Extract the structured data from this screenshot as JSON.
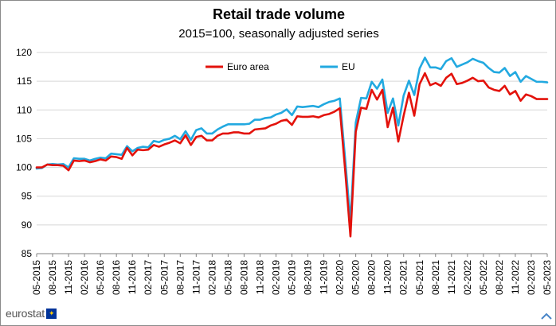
{
  "title": "Retail trade volume",
  "subtitle": "2015=100, seasonally adjusted series",
  "logo": {
    "text": "eurostat",
    "flag_icon": "eu-flag-icon"
  },
  "colors": {
    "euro_area": "#e3120b",
    "eu": "#22a9e0",
    "grid": "#d7d7d7",
    "axis": "#808080"
  },
  "chart_data": {
    "type": "line",
    "title": "Retail trade volume",
    "subtitle": "2015=100, seasonally adjusted series",
    "ylim": [
      85,
      120
    ],
    "yticks": [
      85,
      90,
      95,
      100,
      105,
      110,
      115,
      120
    ],
    "x_tick_labels": [
      "05-2015",
      "08-2015",
      "11-2015",
      "02-2016",
      "05-2016",
      "08-2016",
      "11-2016",
      "02-2017",
      "05-2017",
      "08-2017",
      "11-2017",
      "02-2018",
      "05-2018",
      "08-2018",
      "11-2018",
      "02-2019",
      "05-2019",
      "08-2019",
      "11-2019",
      "02-2020",
      "05-2020",
      "08-2020",
      "11-2020",
      "02-2021",
      "05-2021",
      "08-2021",
      "11-2021",
      "02-2022",
      "05-2022",
      "08-2022",
      "11-2022",
      "02-2023",
      "05-2023"
    ],
    "legend_position": "top-center",
    "grid": "horizontal",
    "x": [
      "05-2015",
      "06-2015",
      "07-2015",
      "08-2015",
      "09-2015",
      "10-2015",
      "11-2015",
      "12-2015",
      "01-2016",
      "02-2016",
      "03-2016",
      "04-2016",
      "05-2016",
      "06-2016",
      "07-2016",
      "08-2016",
      "09-2016",
      "10-2016",
      "11-2016",
      "12-2016",
      "01-2017",
      "02-2017",
      "03-2017",
      "04-2017",
      "05-2017",
      "06-2017",
      "07-2017",
      "08-2017",
      "09-2017",
      "10-2017",
      "11-2017",
      "12-2017",
      "01-2018",
      "02-2018",
      "03-2018",
      "04-2018",
      "05-2018",
      "06-2018",
      "07-2018",
      "08-2018",
      "09-2018",
      "10-2018",
      "11-2018",
      "12-2018",
      "01-2019",
      "02-2019",
      "03-2019",
      "04-2019",
      "05-2019",
      "06-2019",
      "07-2019",
      "08-2019",
      "09-2019",
      "10-2019",
      "11-2019",
      "12-2019",
      "01-2020",
      "02-2020",
      "03-2020",
      "04-2020",
      "05-2020",
      "06-2020",
      "07-2020",
      "08-2020",
      "09-2020",
      "10-2020",
      "11-2020",
      "12-2020",
      "01-2021",
      "02-2021",
      "03-2021",
      "04-2021",
      "05-2021",
      "06-2021",
      "07-2021",
      "08-2021",
      "09-2021",
      "10-2021",
      "11-2021",
      "12-2021",
      "01-2022",
      "02-2022",
      "03-2022",
      "04-2022",
      "05-2022",
      "06-2022",
      "07-2022",
      "08-2022",
      "09-2022",
      "10-2022",
      "11-2022",
      "12-2022",
      "01-2023",
      "02-2023",
      "03-2023",
      "04-2023",
      "05-2023"
    ],
    "series": [
      {
        "name": "Euro area",
        "color": "#e3120b",
        "values": [
          100.0,
          100.0,
          100.5,
          100.4,
          100.4,
          100.3,
          99.5,
          101.2,
          101.1,
          101.2,
          100.9,
          101.1,
          101.4,
          101.2,
          101.9,
          101.8,
          101.5,
          103.4,
          102.1,
          103.1,
          103.0,
          103.1,
          103.9,
          103.6,
          104.0,
          104.3,
          104.7,
          104.2,
          105.6,
          103.9,
          105.3,
          105.5,
          104.7,
          104.7,
          105.5,
          105.9,
          105.9,
          106.1,
          106.1,
          105.9,
          105.9,
          106.6,
          106.7,
          106.8,
          107.3,
          107.6,
          108.1,
          108.3,
          107.4,
          108.9,
          108.8,
          108.8,
          108.9,
          108.7,
          109.1,
          109.3,
          109.7,
          110.3,
          99.6,
          88.0,
          106.2,
          110.4,
          110.2,
          113.5,
          111.8,
          113.5,
          107.0,
          110.4,
          104.5,
          109.0,
          113.0,
          109.0,
          114.5,
          116.4,
          114.3,
          114.7,
          114.2,
          115.6,
          116.3,
          114.5,
          114.7,
          115.1,
          115.6,
          115.0,
          115.1,
          113.9,
          113.5,
          113.3,
          114.2,
          112.7,
          113.3,
          111.6,
          112.7,
          112.4,
          111.9,
          111.9,
          111.9
        ]
      },
      {
        "name": "EU",
        "color": "#22a9e0",
        "values": [
          99.8,
          99.9,
          100.5,
          100.6,
          100.5,
          100.6,
          100.0,
          101.6,
          101.5,
          101.5,
          101.2,
          101.5,
          101.7,
          101.6,
          102.4,
          102.3,
          102.2,
          103.7,
          102.8,
          103.4,
          103.6,
          103.5,
          104.6,
          104.4,
          104.8,
          105.0,
          105.5,
          104.9,
          106.3,
          104.8,
          106.5,
          106.8,
          105.9,
          105.9,
          106.6,
          107.1,
          107.5,
          107.5,
          107.5,
          107.5,
          107.6,
          108.3,
          108.3,
          108.6,
          108.7,
          109.2,
          109.5,
          110.1,
          109.1,
          110.6,
          110.5,
          110.6,
          110.7,
          110.5,
          111.0,
          111.4,
          111.6,
          112.0,
          101.5,
          90.5,
          107.8,
          112.1,
          112.0,
          114.9,
          113.7,
          115.3,
          109.5,
          112.0,
          107.3,
          112.5,
          115.1,
          112.6,
          117.2,
          119.1,
          117.4,
          117.4,
          117.1,
          118.5,
          119.0,
          117.5,
          117.9,
          118.3,
          118.9,
          118.5,
          118.2,
          117.3,
          116.6,
          116.5,
          117.3,
          115.9,
          116.6,
          114.9,
          115.9,
          115.4,
          114.9,
          114.9,
          114.8
        ]
      }
    ]
  }
}
